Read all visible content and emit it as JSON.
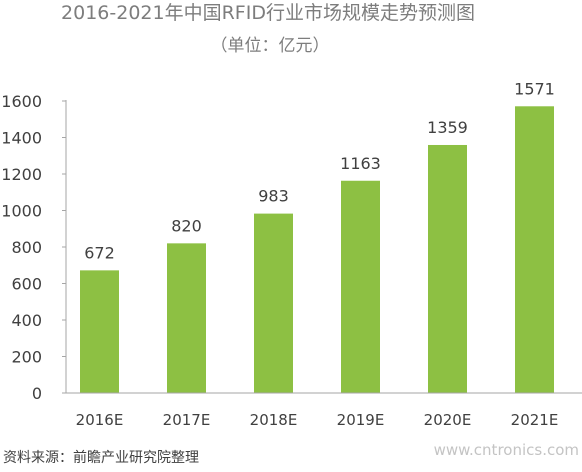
{
  "chart_data": {
    "type": "bar",
    "title": "2016-2021年中国RFID行业市场规模走势预测图",
    "subtitle": "（单位：亿元）",
    "categories": [
      "2016E",
      "2017E",
      "2018E",
      "2019E",
      "2020E",
      "2021E"
    ],
    "values": [
      672,
      820,
      983,
      1163,
      1359,
      1571
    ],
    "ylim": [
      0,
      1600
    ],
    "yticks": [
      0,
      200,
      400,
      600,
      800,
      1000,
      1200,
      1400,
      1600
    ],
    "ytick_labels": [
      "0",
      "200",
      "400",
      "600",
      "800",
      "1000",
      "1200",
      "1400",
      "1600"
    ],
    "grid": false,
    "bar_color": "#8dc043",
    "source": "资料来源：前瞻产业研究院整理",
    "watermark": "www.cntronics.com"
  }
}
